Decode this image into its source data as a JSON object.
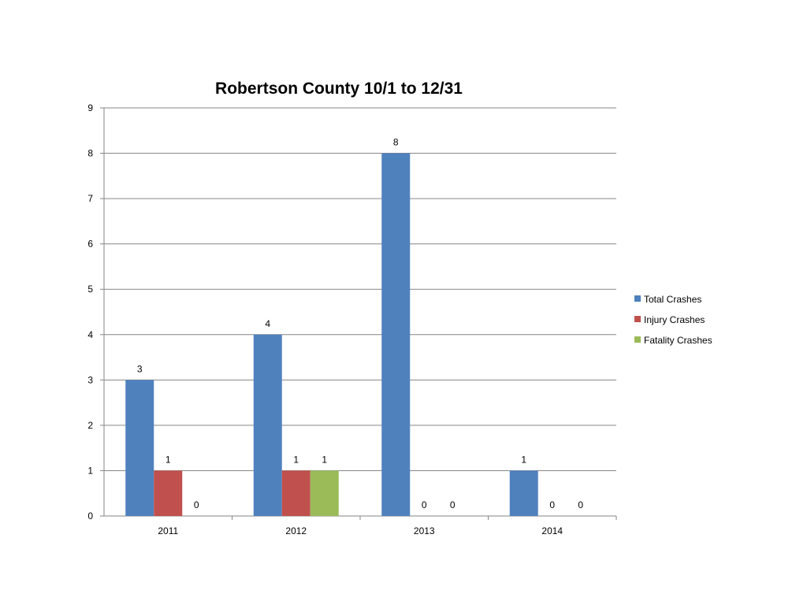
{
  "chart_data": {
    "type": "bar",
    "title": "Robertson County 10/1 to 12/31",
    "xlabel": "",
    "ylabel": "",
    "ylim": [
      0,
      9
    ],
    "y_ticks": [
      0,
      1,
      2,
      3,
      4,
      5,
      6,
      7,
      8,
      9
    ],
    "grid": true,
    "legend_position": "right",
    "categories": [
      "2011",
      "2012",
      "2013",
      "2014"
    ],
    "series": [
      {
        "name": "Total Crashes",
        "color": "#4F81BD",
        "values": [
          3,
          4,
          8,
          1
        ]
      },
      {
        "name": "Injury Crashes",
        "color": "#C0504D",
        "values": [
          1,
          1,
          0,
          0
        ]
      },
      {
        "name": "Fatality Crashes",
        "color": "#9BBB59",
        "values": [
          0,
          1,
          0,
          0
        ]
      }
    ]
  }
}
